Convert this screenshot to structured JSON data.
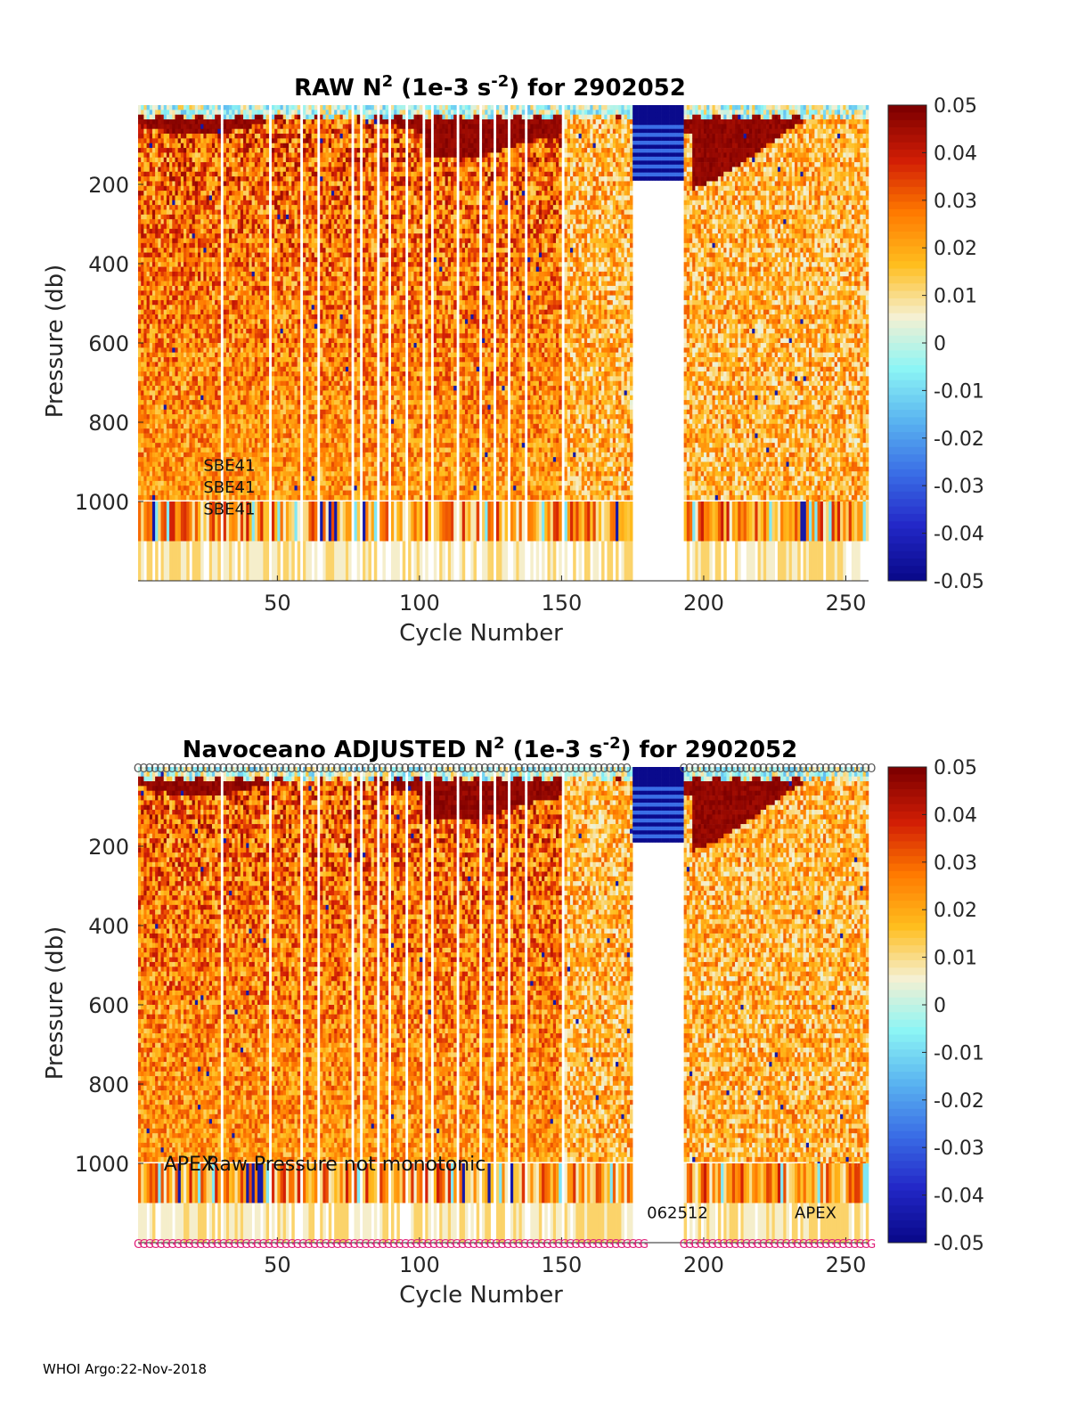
{
  "footer": "WHOI Argo:22-Nov-2018",
  "colors": {
    "colormap": [
      "#7f0000",
      "#d21e05",
      "#ff7a00",
      "#ffbe1e",
      "#f5f0d2",
      "#8cf5f5",
      "#5ab4f0",
      "#3a6ee6",
      "#2328c8",
      "#0a0a8c"
    ],
    "marker_gray": "#555555",
    "marker_pink": "#e0207a",
    "axis": "#262626"
  },
  "chart_data": [
    {
      "type": "heatmap",
      "title": "RAW N",
      "title_sup": "2",
      "title_mid": " (1e-3 s",
      "title_sup2": "-2",
      "title_end": ") for 2902052",
      "xlabel": "Cycle Number",
      "ylabel": "Pressure (db)",
      "xlim": [
        1,
        258
      ],
      "ylim": [
        1200,
        0
      ],
      "xticks": [
        50,
        100,
        150,
        200,
        250
      ],
      "yticks": [
        200,
        400,
        600,
        800,
        1000
      ],
      "clim": [
        -0.05,
        0.05
      ],
      "cticks": [
        "0.05",
        "0.04",
        "0.03",
        "0.02",
        "0.01",
        "0",
        "-0.01",
        "-0.02",
        "-0.03",
        "-0.04",
        "-0.05"
      ],
      "gap_cycles": [
        175,
        192
      ],
      "annotations": [
        {
          "text": "SBE41",
          "x": 24,
          "y": 905
        },
        {
          "text": "SBE41",
          "x": 24,
          "y": 960
        },
        {
          "text": "SBE41",
          "x": 24,
          "y": 1015
        }
      ],
      "markers": []
    },
    {
      "type": "heatmap",
      "title": "Navoceano  ADJUSTED N",
      "title_sup": "2",
      "title_mid": " (1e-3 s",
      "title_sup2": "-2",
      "title_end": ") for 2902052",
      "xlabel": "Cycle Number",
      "ylabel": "Pressure (db)",
      "xlim": [
        1,
        258
      ],
      "ylim": [
        1200,
        0
      ],
      "xticks": [
        50,
        100,
        150,
        200,
        250
      ],
      "yticks": [
        200,
        400,
        600,
        800,
        1000
      ],
      "clim": [
        -0.05,
        0.05
      ],
      "cticks": [
        "0.05",
        "0.04",
        "0.03",
        "0.02",
        "0.01",
        "0",
        "-0.01",
        "-0.02",
        "-0.03",
        "-0.04",
        "-0.05"
      ],
      "gap_cycles": [
        175,
        192
      ],
      "annotations": [
        {
          "text": "APEX",
          "x": 10,
          "y": 1000
        },
        {
          "text": "Raw Pressure not monotonic",
          "x": 25,
          "y": 1000
        },
        {
          "text": "062512",
          "x": 180,
          "y": 1120
        },
        {
          "text": "APEX",
          "x": 232,
          "y": 1120
        }
      ],
      "markers": [
        {
          "symbol": "O",
          "row": "top",
          "ranges": [
            [
              1,
              174
            ],
            [
              193,
              260
            ]
          ]
        },
        {
          "symbol": "G",
          "row": "bottom",
          "ranges": [
            [
              1,
              180
            ],
            [
              193,
              260
            ]
          ]
        }
      ]
    }
  ]
}
